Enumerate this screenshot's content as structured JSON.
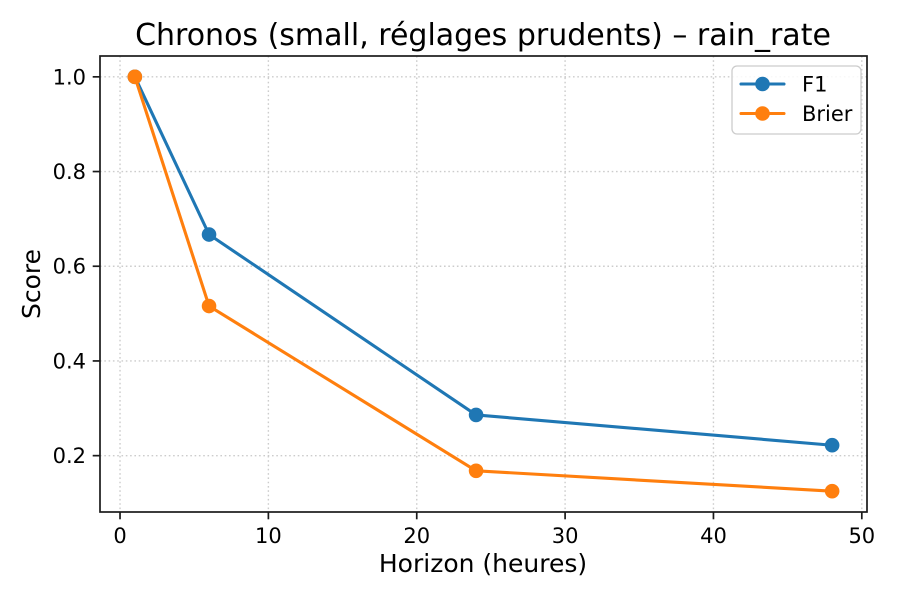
{
  "figure": {
    "background": "#ffffff",
    "text_color": "#000000",
    "spine_color": "#1a1a1a",
    "grid_color": "#cccccc"
  },
  "chart_data": {
    "type": "line",
    "title": "Chronos (small, réglages prudents) – rain_rate",
    "xlabel": "Horizon (heures)",
    "ylabel": "Score",
    "x": [
      1,
      6,
      24,
      48
    ],
    "series": [
      {
        "name": "F1",
        "color": "#1f77b4",
        "values": [
          1.0,
          0.667,
          0.286,
          0.222
        ]
      },
      {
        "name": "Brier",
        "color": "#ff7f0e",
        "values": [
          1.0,
          0.516,
          0.168,
          0.125
        ]
      }
    ],
    "x_ticks": [
      0,
      10,
      20,
      30,
      40,
      50
    ],
    "x_tick_labels": [
      "0",
      "10",
      "20",
      "30",
      "40",
      "50"
    ],
    "y_ticks": [
      0.2,
      0.4,
      0.6,
      0.8,
      1.0
    ],
    "y_tick_labels": [
      "0.2",
      "0.4",
      "0.6",
      "0.8",
      "1.0"
    ],
    "xlim": [
      -1.35,
      50.35
    ],
    "ylim": [
      0.081,
      1.044
    ],
    "grid": true,
    "grid_style": "dotted",
    "marker": "o",
    "legend_position": "upper right",
    "legend": [
      "F1",
      "Brier"
    ]
  }
}
